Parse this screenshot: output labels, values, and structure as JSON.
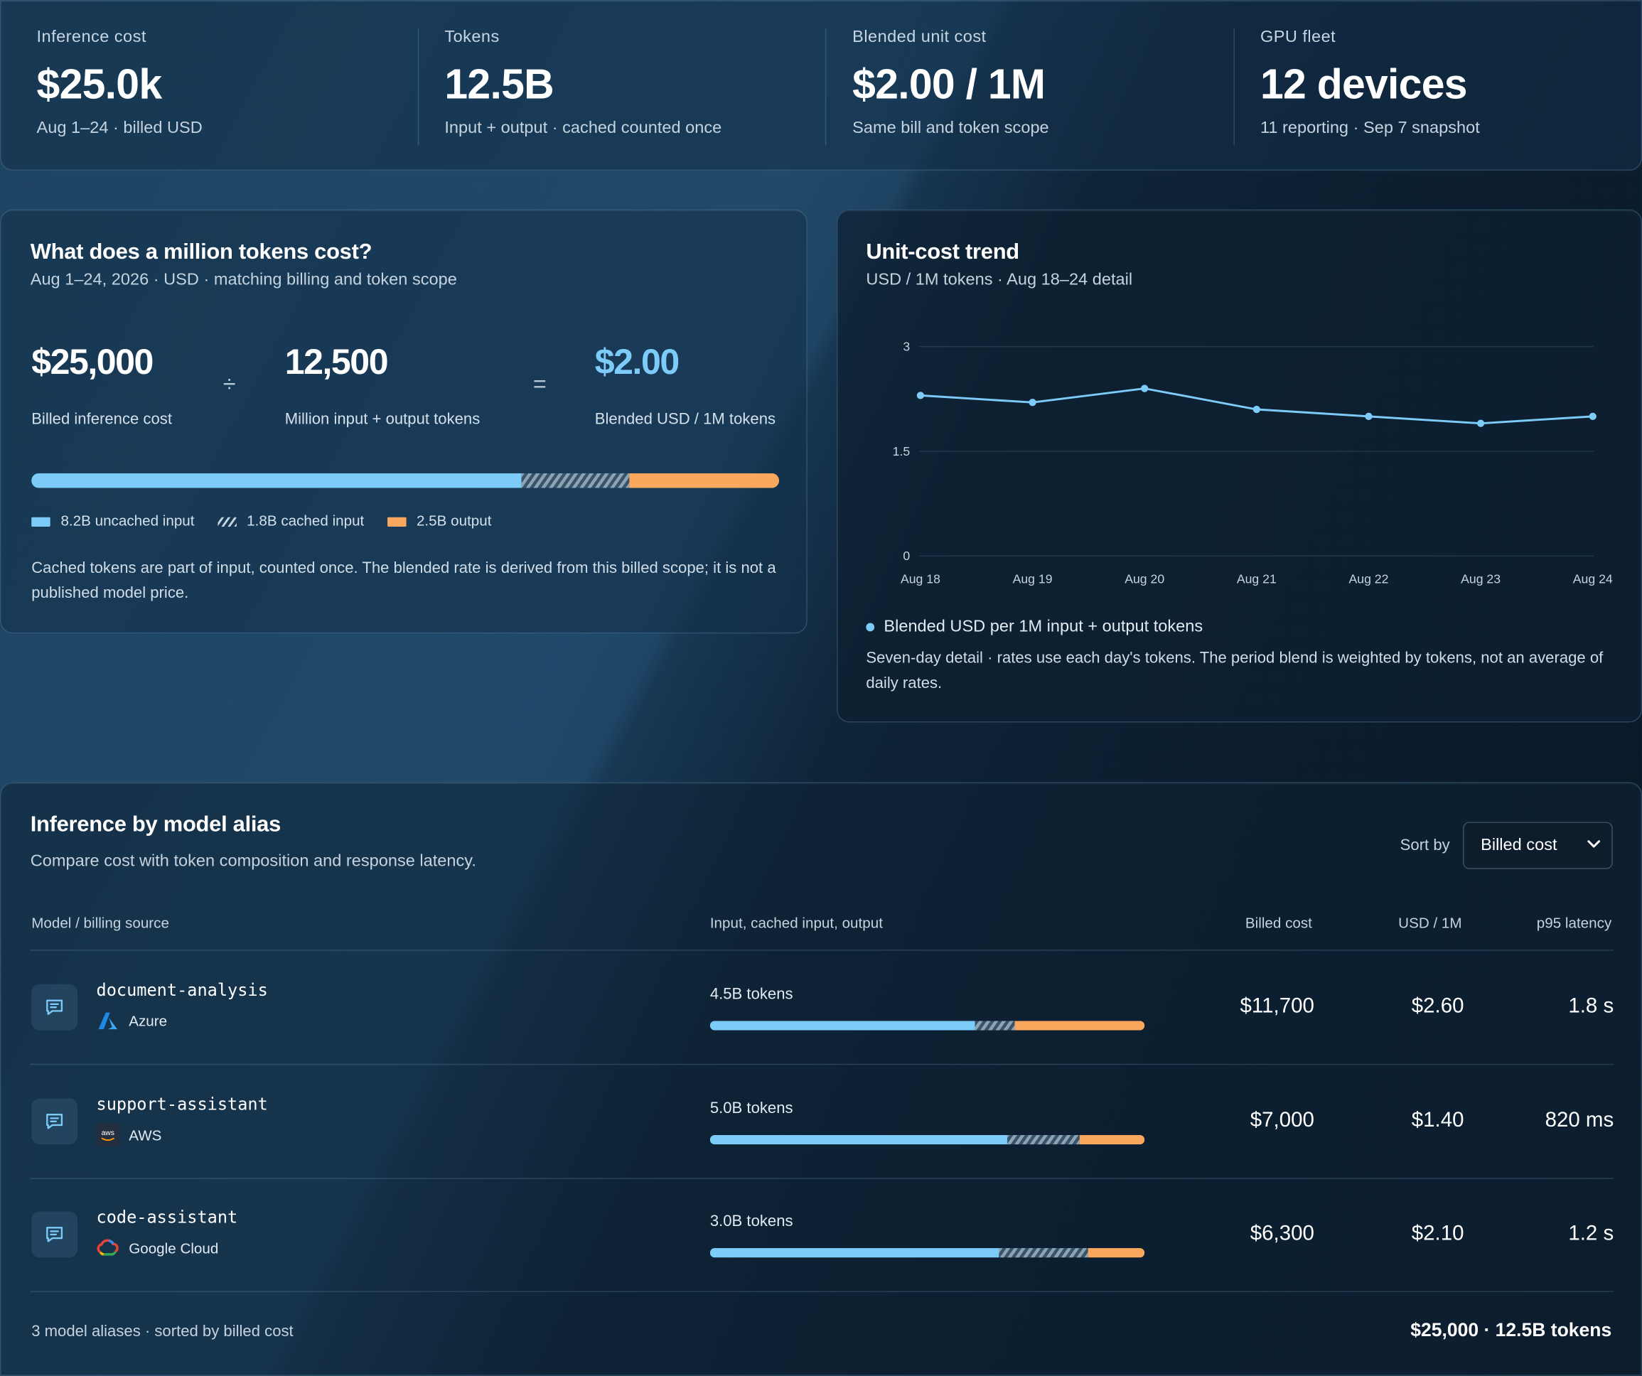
{
  "kpis": [
    {
      "label": "Inference cost",
      "value": "$25.0k",
      "sub": "Aug 1–24 · billed USD"
    },
    {
      "label": "Tokens",
      "value": "12.5B",
      "sub": "Input + output · cached counted once"
    },
    {
      "label": "Blended unit cost",
      "value": "$2.00 / 1M",
      "sub": "Same bill and token scope"
    },
    {
      "label": "GPU fleet",
      "value": "12 devices",
      "sub": "11 reporting · Sep 7 snapshot"
    }
  ],
  "million": {
    "title": "What does a million tokens cost?",
    "subtitle": "Aug 1–24, 2026 · USD · matching billing and token scope",
    "cost_value": "$25,000",
    "cost_label": "Billed inference cost",
    "divide_symbol": "÷",
    "tokens_value": "12,500",
    "tokens_label": "Million input + output tokens",
    "equals_symbol": "=",
    "rate_value": "$2.00",
    "rate_label": "Blended USD / 1M tokens",
    "composition": {
      "uncached_input": 8.2,
      "cached_input": 1.8,
      "output": 2.5
    },
    "legend": [
      "8.2B uncached input",
      "1.8B cached input",
      "2.5B output"
    ],
    "note": "Cached tokens are part of input, counted once. The blended rate is derived from this billed scope; it is not a published model price."
  },
  "trend": {
    "title": "Unit-cost trend",
    "subtitle": "USD / 1M tokens · Aug 18–24 detail",
    "legend": "Blended USD per 1M input + output tokens",
    "note": "Seven-day detail · rates use each day's tokens. The period blend is weighted by tokens, not an average of daily rates."
  },
  "chart_data": {
    "type": "line",
    "x": [
      "Aug 18",
      "Aug 19",
      "Aug 20",
      "Aug 21",
      "Aug 22",
      "Aug 23",
      "Aug 24"
    ],
    "series": [
      {
        "name": "Blended USD per 1M input + output tokens",
        "values": [
          2.3,
          2.2,
          2.4,
          2.1,
          2.0,
          1.9,
          2.0
        ]
      }
    ],
    "yticks": [
      "0",
      "1.5",
      "3"
    ],
    "ylim": [
      0,
      3
    ],
    "grid": true,
    "color": "#7ccbf8"
  },
  "table": {
    "title": "Inference by model alias",
    "subtitle": "Compare cost with token composition and response latency.",
    "sort_label": "Sort by",
    "sort_value": "Billed cost",
    "headers": {
      "model": "Model / billing source",
      "tokens": "Input, cached input, output",
      "cost": "Billed cost",
      "unit": "USD / 1M",
      "latency": "p95 latency"
    },
    "rows": [
      {
        "name": "document-analysis",
        "source": "Azure",
        "source_icon": "azure-icon",
        "tokens": "4.5B tokens",
        "mix": [
          0.61,
          0.09,
          0.3
        ],
        "cost": "$11,700",
        "unit": "$2.60",
        "latency": "1.8 s"
      },
      {
        "name": "support-assistant",
        "source": "AWS",
        "source_icon": "aws-icon",
        "tokens": "5.0B tokens",
        "mix": [
          0.685,
          0.165,
          0.15
        ],
        "cost": "$7,000",
        "unit": "$1.40",
        "latency": "820 ms"
      },
      {
        "name": "code-assistant",
        "source": "Google Cloud",
        "source_icon": "google-cloud-icon",
        "tokens": "3.0B tokens",
        "mix": [
          0.665,
          0.205,
          0.13
        ],
        "cost": "$6,300",
        "unit": "$2.10",
        "latency": "1.2 s"
      }
    ],
    "footer_left": "3 model aliases · sorted by billed cost",
    "footer_right": "$25,000 · 12.5B tokens"
  },
  "colors": {
    "input": "#7ccbf8",
    "output": "#fba85f",
    "accent": "#7ccbf8"
  }
}
